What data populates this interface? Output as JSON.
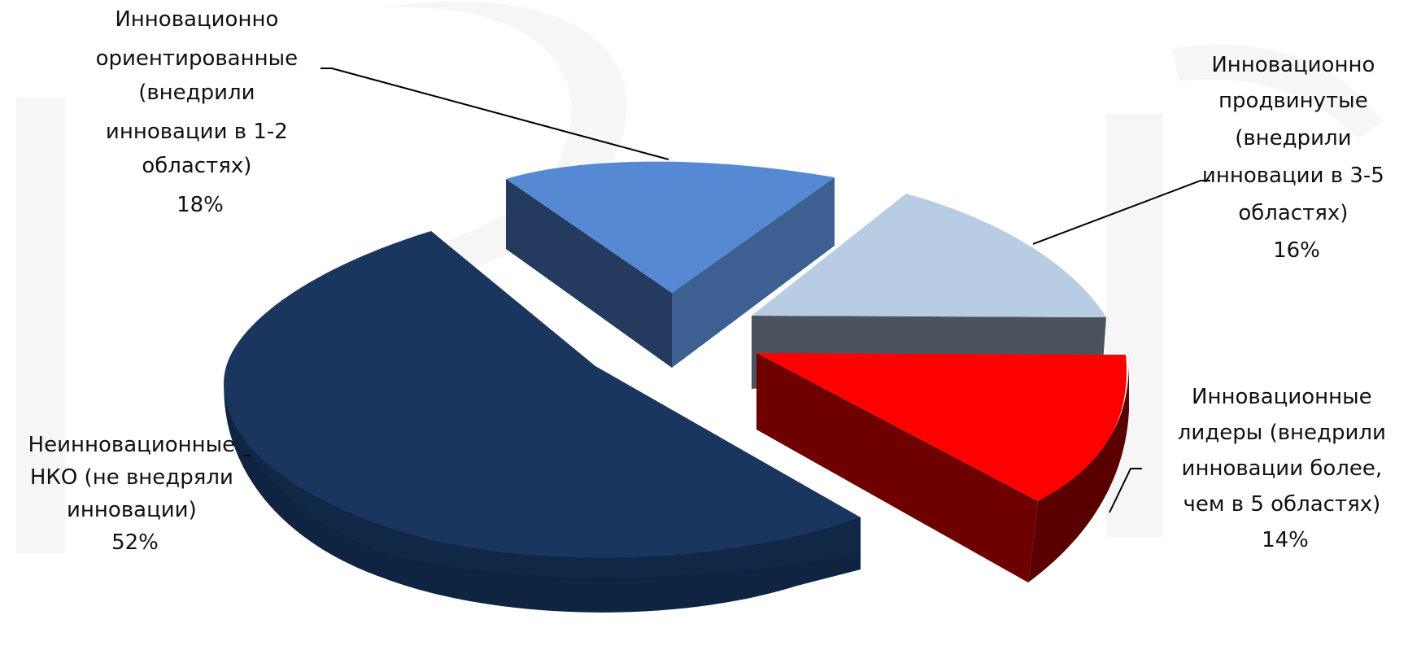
{
  "chart_data": {
    "type": "pie",
    "style": "3d-exploded",
    "slices": [
      {
        "label_lines": [
          "Неинновационные",
          "НКО (не внедряли",
          "инновации)",
          "52%"
        ],
        "value": 52,
        "color": "#1a365e",
        "side_color": "#0f2440",
        "exploded": false
      },
      {
        "label_lines": [
          "Инновационно",
          "ориентированные",
          "(внедрили",
          "инновации в 1-2",
          "областях)",
          "18%"
        ],
        "value": 18,
        "color": "#5589d4",
        "side_color": "#243a5e",
        "exploded": true
      },
      {
        "label_lines": [
          "Инновационно",
          "продвинутые",
          "(внедрили",
          "инновации в 3-5",
          "областях)",
          "16%"
        ],
        "value": 16,
        "color": "#b8cce4",
        "side_color": "#4b535e",
        "exploded": true
      },
      {
        "label_lines": [
          "Инновационные",
          "лидеры (внедрили",
          "инновации более,",
          "чем в 5 областях)",
          "14%"
        ],
        "value": 14,
        "color": "#ff0000",
        "side_color": "#6e0000",
        "exploded": true
      }
    ]
  }
}
